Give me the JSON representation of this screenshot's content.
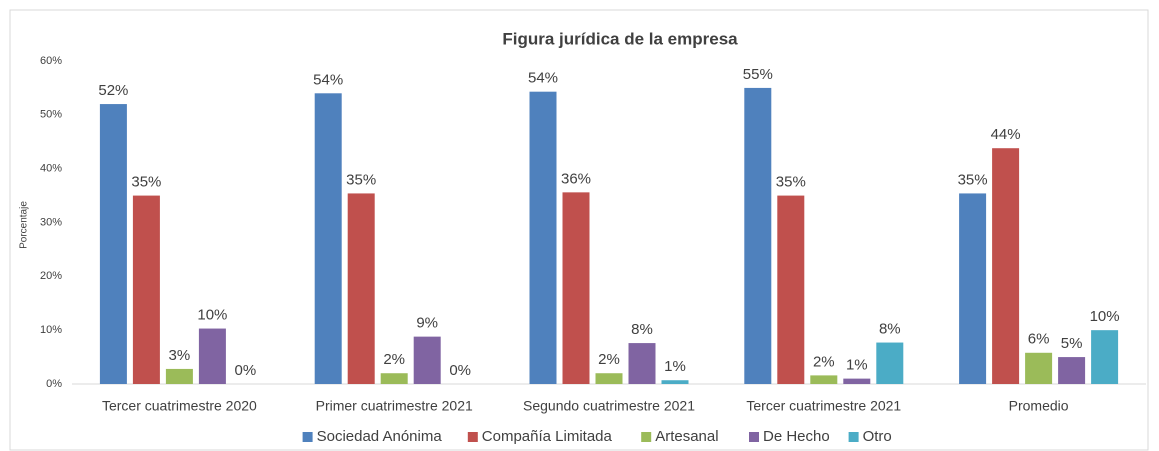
{
  "chart_data": {
    "type": "bar",
    "title": "Figura jurídica de la empresa",
    "y_label": "Porcentaje",
    "categories": [
      "Tercer cuatrimestre 2020",
      "Primer cuatrimestre 2021",
      "Segundo cuatrimestre 2021",
      "Tercer cuatrimestre 2021",
      "Promedio"
    ],
    "series": [
      {
        "name": "Sociedad Anónima",
        "color": "#4f81bd",
        "values": [
          52,
          54,
          54.3,
          55,
          35.4
        ],
        "value_labels": [
          "52%",
          "54%",
          "54%",
          "55%",
          "35%"
        ]
      },
      {
        "name": "Compañía Limitada",
        "color": "#c0504d",
        "values": [
          35,
          35.4,
          35.6,
          35,
          43.8
        ],
        "value_labels": [
          "35%",
          "35%",
          "36%",
          "35%",
          "44%"
        ]
      },
      {
        "name": "Artesanal",
        "color": "#9bbb59",
        "values": [
          2.8,
          2,
          2,
          1.6,
          5.8
        ],
        "value_labels": [
          "3%",
          "2%",
          "2%",
          "2%",
          "6%"
        ]
      },
      {
        "name": "De Hecho",
        "color": "#8064a2",
        "values": [
          10.3,
          8.8,
          7.6,
          1,
          5
        ],
        "value_labels": [
          "10%",
          "9%",
          "8%",
          "1%",
          "5%"
        ]
      },
      {
        "name": "Otro",
        "color": "#4bacc6",
        "values": [
          0,
          0,
          0.7,
          7.7,
          10
        ],
        "value_labels": [
          "0%",
          "0%",
          "1%",
          "8%",
          "10%"
        ]
      }
    ],
    "ylim": [
      0,
      60
    ],
    "yticks": [
      {
        "value": 0,
        "label": "0%"
      },
      {
        "value": 10,
        "label": "10%"
      },
      {
        "value": 20,
        "label": "20%"
      },
      {
        "value": 30,
        "label": "30%"
      },
      {
        "value": 40,
        "label": "40%"
      },
      {
        "value": 50,
        "label": "50%"
      },
      {
        "value": 60,
        "label": "60%"
      }
    ],
    "grid": false,
    "legend": "bottom"
  }
}
